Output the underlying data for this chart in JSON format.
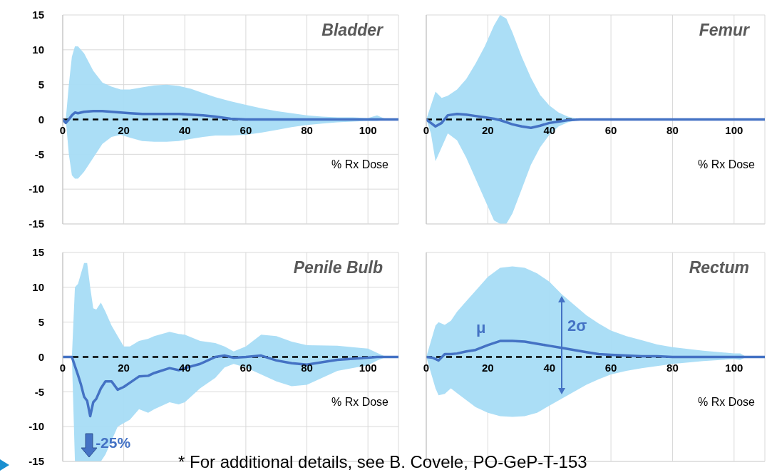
{
  "chart_data": [
    {
      "type": "line",
      "title": "Bladder",
      "xlabel": "% Rx Dose",
      "x": [
        0,
        1,
        2,
        3,
        4,
        5,
        7,
        10,
        13,
        16,
        19,
        22,
        26,
        30,
        34,
        38,
        42,
        46,
        50,
        55,
        60,
        65,
        70,
        75,
        80,
        85,
        90,
        95,
        100,
        103,
        105,
        107,
        110
      ],
      "series": [
        {
          "color": "#4472c4",
          "values": [
            0,
            -0.5,
            0,
            0.6,
            1,
            0.9,
            1.1,
            1.2,
            1.2,
            1.1,
            1,
            0.9,
            0.8,
            0.8,
            0.8,
            0.8,
            0.7,
            0.6,
            0.4,
            0.1,
            0,
            0,
            0,
            0,
            0,
            0,
            0,
            0,
            0,
            0,
            0,
            0,
            0
          ],
          "upper": [
            0,
            0,
            5,
            9,
            10.5,
            10.5,
            9.5,
            7,
            5.3,
            4.7,
            4.3,
            4.3,
            4.6,
            4.9,
            5,
            4.8,
            4.4,
            3.8,
            3.2,
            2.6,
            2.1,
            1.6,
            1.2,
            0.9,
            0.6,
            0.4,
            0.3,
            0.3,
            0.2,
            0.6,
            0.2,
            0,
            0
          ],
          "lower": [
            0,
            0,
            -5,
            -8,
            -8.5,
            -8.5,
            -7.5,
            -5.5,
            -3.5,
            -2.5,
            -2.2,
            -2.6,
            -3.1,
            -3.2,
            -3.2,
            -3.1,
            -2.8,
            -2.5,
            -2.3,
            -2.3,
            -2.2,
            -1.9,
            -1.5,
            -1.1,
            -0.8,
            -0.6,
            -0.4,
            -0.3,
            -0.2,
            -0.2,
            -0.1,
            0,
            0
          ]
        }
      ],
      "xlim": [
        0,
        110
      ],
      "ylim": [
        -15,
        15
      ],
      "xticks": [
        0,
        20,
        40,
        60,
        80,
        100
      ],
      "yticks": [
        -15,
        -10,
        -5,
        0,
        5,
        10,
        15
      ],
      "grid": true,
      "ref_lines": [
        {
          "axis": "y",
          "value": 0,
          "color": "#000000",
          "line_style": "dashed"
        }
      ]
    },
    {
      "type": "line",
      "title": "Femur",
      "xlabel": "% Rx Dose",
      "x": [
        0,
        1.5,
        3,
        5,
        7,
        10,
        13,
        16,
        19,
        22,
        24,
        26,
        28,
        31,
        34,
        37,
        40,
        43,
        46,
        50,
        60,
        80,
        110
      ],
      "series": [
        {
          "color": "#4472c4",
          "values": [
            0,
            -0.5,
            -1,
            -0.5,
            0.6,
            0.8,
            0.7,
            0.5,
            0.3,
            0.1,
            -0.1,
            -0.4,
            -0.7,
            -1,
            -1.2,
            -0.9,
            -0.5,
            -0.3,
            -0.1,
            0,
            0,
            0,
            0
          ],
          "upper": [
            0,
            2,
            4,
            3.1,
            3.4,
            4.3,
            5.8,
            8,
            10.5,
            13.5,
            15,
            14.5,
            12.5,
            9,
            6,
            3.5,
            2,
            1,
            0.4,
            0,
            0,
            0,
            0
          ],
          "lower": [
            0,
            -2,
            -6,
            -4,
            -2,
            -3,
            -5.5,
            -8.5,
            -11.5,
            -14.5,
            -15,
            -15,
            -13.5,
            -10,
            -6.5,
            -4,
            -2.2,
            -1,
            -0.4,
            0,
            0,
            0,
            0
          ]
        }
      ],
      "xlim": [
        0,
        110
      ],
      "ylim": [
        -15,
        15
      ],
      "xticks": [
        0,
        20,
        40,
        60,
        80,
        100
      ],
      "yticks": [
        -15,
        -10,
        -5,
        0,
        5,
        10,
        15
      ],
      "grid": true,
      "tick_labels": "x",
      "ref_lines": [
        {
          "axis": "y",
          "value": 0,
          "color": "#000000",
          "line_style": "dashed"
        }
      ]
    },
    {
      "type": "line",
      "title": "Penile Bulb",
      "xlabel": "% Rx Dose",
      "x": [
        0,
        3,
        4,
        5,
        6,
        7,
        8,
        9,
        10,
        11,
        12.5,
        14,
        16,
        18,
        20,
        22,
        25,
        28,
        30,
        35,
        38,
        40,
        45,
        50,
        53,
        56,
        60,
        65,
        70,
        75,
        80,
        90,
        100,
        103,
        106,
        110
      ],
      "series": [
        {
          "color": "#4472c4",
          "values": [
            0,
            0,
            -1.3,
            -2.6,
            -4,
            -5.7,
            -6.3,
            -8.5,
            -6.5,
            -6,
            -4.5,
            -3.5,
            -3.5,
            -4.7,
            -4.3,
            -3.7,
            -2.8,
            -2.7,
            -2.3,
            -1.6,
            -1.9,
            -1.6,
            -1,
            0,
            0.2,
            -0.1,
            0,
            0.2,
            -0.5,
            -0.9,
            -1.1,
            -0.4,
            -0.1,
            0,
            0,
            0
          ],
          "upper": [
            0,
            0,
            10,
            10.5,
            12,
            13.5,
            13.5,
            10,
            7,
            6.8,
            7.8,
            6.5,
            4.5,
            3,
            1.5,
            1.5,
            2.3,
            2.6,
            3,
            3.6,
            3.3,
            3.2,
            2.3,
            2,
            1.5,
            0.8,
            1.5,
            3.2,
            3,
            2.2,
            1.7,
            1.6,
            1.2,
            0.6,
            0,
            0
          ],
          "lower": [
            0,
            0,
            -15,
            -15,
            -15,
            -15,
            -15,
            -15,
            -15,
            -15,
            -15,
            -14,
            -12,
            -10,
            -9.5,
            -9,
            -7.5,
            -8,
            -7.5,
            -6.5,
            -6.8,
            -6.5,
            -4.5,
            -3,
            -1.5,
            -1,
            -1.5,
            -2.5,
            -3.5,
            -4.2,
            -4,
            -2,
            -1.2,
            -0.5,
            0,
            0
          ]
        }
      ],
      "xlim": [
        0,
        110
      ],
      "ylim": [
        -15,
        15
      ],
      "xticks": [
        0,
        20,
        40,
        60,
        80,
        100
      ],
      "yticks": [
        -15,
        -10,
        -5,
        0,
        5,
        10,
        15
      ],
      "grid": true,
      "ref_lines": [
        {
          "axis": "y",
          "value": 0,
          "color": "#000000",
          "line_style": "dashed"
        }
      ],
      "annotations": [
        {
          "text": "-25%",
          "x": 16.5,
          "y": -12.3
        },
        "* For additional details, see B. Covele, PO-GeP-T-153"
      ]
    },
    {
      "type": "line",
      "title": "Rectum",
      "xlabel": "% Rx Dose",
      "x": [
        0,
        2,
        3,
        4,
        6,
        8,
        10,
        13,
        16,
        20,
        24,
        28,
        32,
        36,
        40,
        44,
        48,
        52,
        56,
        60,
        65,
        70,
        75,
        80,
        90,
        100,
        102,
        104,
        110
      ],
      "series": [
        {
          "color": "#4472c4",
          "values": [
            0,
            -0.1,
            -0.3,
            -0.5,
            0.4,
            0.4,
            0.5,
            0.8,
            1,
            1.7,
            2.3,
            2.3,
            2.2,
            1.9,
            1.6,
            1.3,
            1,
            0.7,
            0.4,
            0.3,
            0.2,
            0.1,
            0.1,
            0,
            0,
            0,
            0,
            0,
            0
          ],
          "upper": [
            0,
            3,
            4.5,
            5,
            4.6,
            5.2,
            6.5,
            8,
            9.5,
            11.5,
            12.8,
            13,
            12.8,
            12,
            10.8,
            9,
            7.5,
            6,
            4.8,
            3.8,
            3,
            2.4,
            1.8,
            1.4,
            0.9,
            0.5,
            0.5,
            0,
            0
          ],
          "lower": [
            0,
            -3,
            -4.5,
            -5.5,
            -5.3,
            -4.5,
            -5.2,
            -6.2,
            -7.2,
            -8,
            -8.5,
            -8.6,
            -8.5,
            -8,
            -7,
            -6,
            -5,
            -4,
            -3.2,
            -2.5,
            -2,
            -1.6,
            -1.3,
            -1,
            -0.6,
            -0.3,
            -0.4,
            0,
            0
          ]
        }
      ],
      "xlim": [
        0,
        110
      ],
      "ylim": [
        -15,
        15
      ],
      "xticks": [
        0,
        20,
        40,
        60,
        80,
        100
      ],
      "yticks": [
        -15,
        -10,
        -5,
        0,
        5,
        10,
        15
      ],
      "grid": true,
      "tick_labels": "x",
      "ref_lines": [
        {
          "axis": "y",
          "value": 0,
          "color": "#000000",
          "line_style": "dashed"
        }
      ],
      "annotations": [
        "μ",
        "2σ"
      ]
    }
  ]
}
